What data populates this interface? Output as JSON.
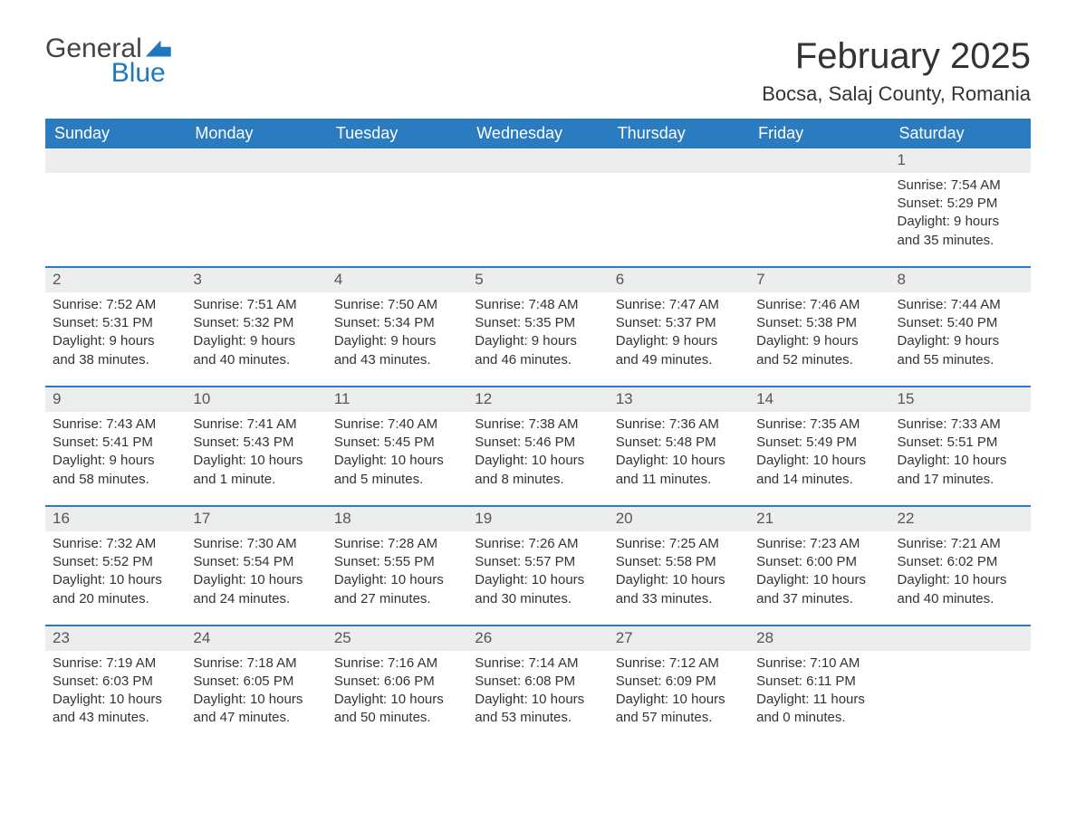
{
  "logo": {
    "word1": "General",
    "word2": "Blue"
  },
  "title": "February 2025",
  "location": "Bocsa, Salaj County, Romania",
  "colors": {
    "header_bg": "#2a7bbf",
    "header_text": "#ffffff",
    "row_divider": "#2a7bbf",
    "daynum_bg": "#eceeee",
    "text": "#333333",
    "logo_blue": "#2078bf"
  },
  "layout": {
    "columns": 7,
    "rows": 5,
    "font_family": "Arial",
    "title_fontsize": 40,
    "location_fontsize": 22,
    "header_fontsize": 18,
    "cell_fontsize": 15
  },
  "weekdays": [
    "Sunday",
    "Monday",
    "Tuesday",
    "Wednesday",
    "Thursday",
    "Friday",
    "Saturday"
  ],
  "labels": {
    "sunrise": "Sunrise:",
    "sunset": "Sunset:",
    "daylight": "Daylight:"
  },
  "weeks": [
    [
      null,
      null,
      null,
      null,
      null,
      null,
      {
        "day": "1",
        "sunrise": "7:54 AM",
        "sunset": "5:29 PM",
        "daylight": "9 hours and 35 minutes."
      }
    ],
    [
      {
        "day": "2",
        "sunrise": "7:52 AM",
        "sunset": "5:31 PM",
        "daylight": "9 hours and 38 minutes."
      },
      {
        "day": "3",
        "sunrise": "7:51 AM",
        "sunset": "5:32 PM",
        "daylight": "9 hours and 40 minutes."
      },
      {
        "day": "4",
        "sunrise": "7:50 AM",
        "sunset": "5:34 PM",
        "daylight": "9 hours and 43 minutes."
      },
      {
        "day": "5",
        "sunrise": "7:48 AM",
        "sunset": "5:35 PM",
        "daylight": "9 hours and 46 minutes."
      },
      {
        "day": "6",
        "sunrise": "7:47 AM",
        "sunset": "5:37 PM",
        "daylight": "9 hours and 49 minutes."
      },
      {
        "day": "7",
        "sunrise": "7:46 AM",
        "sunset": "5:38 PM",
        "daylight": "9 hours and 52 minutes."
      },
      {
        "day": "8",
        "sunrise": "7:44 AM",
        "sunset": "5:40 PM",
        "daylight": "9 hours and 55 minutes."
      }
    ],
    [
      {
        "day": "9",
        "sunrise": "7:43 AM",
        "sunset": "5:41 PM",
        "daylight": "9 hours and 58 minutes."
      },
      {
        "day": "10",
        "sunrise": "7:41 AM",
        "sunset": "5:43 PM",
        "daylight": "10 hours and 1 minute."
      },
      {
        "day": "11",
        "sunrise": "7:40 AM",
        "sunset": "5:45 PM",
        "daylight": "10 hours and 5 minutes."
      },
      {
        "day": "12",
        "sunrise": "7:38 AM",
        "sunset": "5:46 PM",
        "daylight": "10 hours and 8 minutes."
      },
      {
        "day": "13",
        "sunrise": "7:36 AM",
        "sunset": "5:48 PM",
        "daylight": "10 hours and 11 minutes."
      },
      {
        "day": "14",
        "sunrise": "7:35 AM",
        "sunset": "5:49 PM",
        "daylight": "10 hours and 14 minutes."
      },
      {
        "day": "15",
        "sunrise": "7:33 AM",
        "sunset": "5:51 PM",
        "daylight": "10 hours and 17 minutes."
      }
    ],
    [
      {
        "day": "16",
        "sunrise": "7:32 AM",
        "sunset": "5:52 PM",
        "daylight": "10 hours and 20 minutes."
      },
      {
        "day": "17",
        "sunrise": "7:30 AM",
        "sunset": "5:54 PM",
        "daylight": "10 hours and 24 minutes."
      },
      {
        "day": "18",
        "sunrise": "7:28 AM",
        "sunset": "5:55 PM",
        "daylight": "10 hours and 27 minutes."
      },
      {
        "day": "19",
        "sunrise": "7:26 AM",
        "sunset": "5:57 PM",
        "daylight": "10 hours and 30 minutes."
      },
      {
        "day": "20",
        "sunrise": "7:25 AM",
        "sunset": "5:58 PM",
        "daylight": "10 hours and 33 minutes."
      },
      {
        "day": "21",
        "sunrise": "7:23 AM",
        "sunset": "6:00 PM",
        "daylight": "10 hours and 37 minutes."
      },
      {
        "day": "22",
        "sunrise": "7:21 AM",
        "sunset": "6:02 PM",
        "daylight": "10 hours and 40 minutes."
      }
    ],
    [
      {
        "day": "23",
        "sunrise": "7:19 AM",
        "sunset": "6:03 PM",
        "daylight": "10 hours and 43 minutes."
      },
      {
        "day": "24",
        "sunrise": "7:18 AM",
        "sunset": "6:05 PM",
        "daylight": "10 hours and 47 minutes."
      },
      {
        "day": "25",
        "sunrise": "7:16 AM",
        "sunset": "6:06 PM",
        "daylight": "10 hours and 50 minutes."
      },
      {
        "day": "26",
        "sunrise": "7:14 AM",
        "sunset": "6:08 PM",
        "daylight": "10 hours and 53 minutes."
      },
      {
        "day": "27",
        "sunrise": "7:12 AM",
        "sunset": "6:09 PM",
        "daylight": "10 hours and 57 minutes."
      },
      {
        "day": "28",
        "sunrise": "7:10 AM",
        "sunset": "6:11 PM",
        "daylight": "11 hours and 0 minutes."
      },
      null
    ]
  ]
}
